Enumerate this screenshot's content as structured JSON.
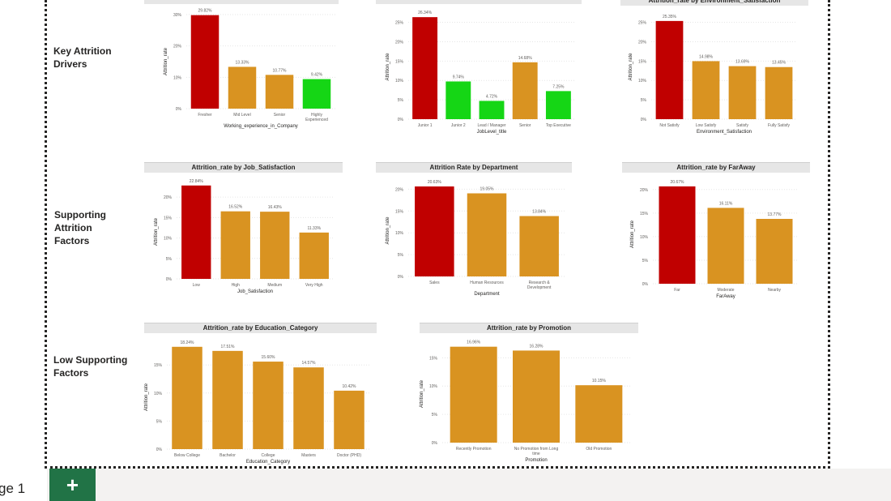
{
  "section_labels": [
    {
      "text": "Key Attrition\nDrivers",
      "color": "#c8102e"
    },
    {
      "text": "Supporting\nAttrition\nFactors",
      "color": "#e8502a"
    },
    {
      "text": "Low Supporting\nFactors",
      "color": "#1a8a1a"
    }
  ],
  "colors": {
    "red": "#c00000",
    "orange": "#d99321",
    "green": "#15d615"
  },
  "footer": {
    "page_label": "ge 1",
    "add_page_icon": "plus-icon"
  },
  "chart_data": [
    {
      "type": "bar",
      "title": "",
      "xlabel": "Working_experience_in_Company",
      "ylabel": "Attrition_rate",
      "categories": [
        "Fresher",
        "Mid Level",
        "Senior",
        "Highly\nExperienced"
      ],
      "values": [
        29.82,
        13.33,
        10.77,
        9.42
      ],
      "value_labels": [
        "29.82%",
        "13.33%",
        "10.77%",
        "9.42%"
      ],
      "bar_colors": [
        "red",
        "orange",
        "orange",
        "green"
      ],
      "y_ticks": [
        "0%",
        "10%",
        "20%",
        "30%"
      ],
      "ylim": [
        0,
        30
      ]
    },
    {
      "type": "bar",
      "title": "",
      "xlabel": "JobLevel_title",
      "ylabel": "Attrition_rate",
      "categories": [
        "Junior 1",
        "Junior 2",
        "Lead / Manager",
        "Senior",
        "Top Executive"
      ],
      "values": [
        26.34,
        9.74,
        4.72,
        14.68,
        7.25
      ],
      "value_labels": [
        "26.34%",
        "9.74%",
        "4.72%",
        "14.68%",
        "7.25%"
      ],
      "bar_colors": [
        "red",
        "green",
        "green",
        "orange",
        "green"
      ],
      "y_ticks": [
        "0%",
        "5%",
        "10%",
        "15%",
        "20%",
        "25%"
      ],
      "ylim": [
        0,
        27
      ]
    },
    {
      "type": "bar",
      "title": "Attrition_rate by Environment_Satisfaction",
      "xlabel": "Environment_Satisfaction",
      "ylabel": "Attrition_rate",
      "categories": [
        "Not Satisfy",
        "Low Satisfy",
        "Satisfy",
        "Fully Satisfy"
      ],
      "values": [
        25.35,
        14.98,
        13.69,
        13.45
      ],
      "value_labels": [
        "25.35%",
        "14.98%",
        "13.69%",
        "13.45%"
      ],
      "bar_colors": [
        "red",
        "orange",
        "orange",
        "orange"
      ],
      "y_ticks": [
        "0%",
        "5%",
        "10%",
        "15%",
        "20%",
        "25%"
      ],
      "ylim": [
        0,
        27
      ]
    },
    {
      "type": "bar",
      "title": "Attrition_rate by Job_Satisfaction",
      "xlabel": "Job_Satisfaction",
      "ylabel": "Attrition_rate",
      "categories": [
        "Low",
        "High",
        "Medium",
        "Very High"
      ],
      "values": [
        22.84,
        16.52,
        16.43,
        11.33
      ],
      "value_labels": [
        "22.84%",
        "16.52%",
        "16.43%",
        "11.33%"
      ],
      "bar_colors": [
        "red",
        "orange",
        "orange",
        "orange"
      ],
      "y_ticks": [
        "0%",
        "5%",
        "10%",
        "15%",
        "20%"
      ],
      "ylim": [
        0,
        23
      ]
    },
    {
      "type": "bar",
      "title": "Attrition Rate by Department",
      "xlabel": "Department",
      "ylabel": "Attrition_rate",
      "categories": [
        "Sales",
        "Human Resources",
        "Research &\nDevelopment"
      ],
      "values": [
        20.63,
        19.05,
        13.84
      ],
      "value_labels": [
        "20.63%",
        "19.05%",
        "13.84%"
      ],
      "bar_colors": [
        "red",
        "orange",
        "orange"
      ],
      "y_ticks": [
        "0%",
        "5%",
        "10%",
        "15%",
        "20%"
      ],
      "ylim": [
        0,
        21
      ]
    },
    {
      "type": "bar",
      "title": "Attrition_rate by FarAway",
      "xlabel": "FarAway",
      "ylabel": "Attrition_rate",
      "categories": [
        "Far",
        "Moderate",
        "Nearby"
      ],
      "values": [
        20.67,
        16.11,
        13.77
      ],
      "value_labels": [
        "20.67%",
        "16.11%",
        "13.77%"
      ],
      "bar_colors": [
        "red",
        "orange",
        "orange"
      ],
      "y_ticks": [
        "0%",
        "5%",
        "10%",
        "15%",
        "20%"
      ],
      "ylim": [
        0,
        21
      ]
    },
    {
      "type": "bar",
      "title": "Attrition_rate by Education_Category",
      "xlabel": "Education_Category",
      "ylabel": "Attrition_rate",
      "categories": [
        "Below College",
        "Bachelor",
        "College",
        "Masters",
        "Doctor (PHD)"
      ],
      "values": [
        18.24,
        17.51,
        15.6,
        14.57,
        10.42
      ],
      "value_labels": [
        "18.24%",
        "17.51%",
        "15.60%",
        "14.57%",
        "10.42%"
      ],
      "bar_colors": [
        "orange",
        "orange",
        "orange",
        "orange",
        "orange"
      ],
      "y_ticks": [
        "0%",
        "5%",
        "10%",
        "15%"
      ],
      "ylim": [
        0,
        18.5
      ]
    },
    {
      "type": "bar",
      "title": "Attrition_rate by Promotion",
      "xlabel": "Promotion",
      "ylabel": "Attrition_rate",
      "categories": [
        "Recently Promotion",
        "No Promotion from Long\ntime",
        "Old Promotion"
      ],
      "values": [
        16.96,
        16.28,
        10.15
      ],
      "value_labels": [
        "16.96%",
        "16.28%",
        "10.15%"
      ],
      "bar_colors": [
        "orange",
        "orange",
        "orange"
      ],
      "y_ticks": [
        "0%",
        "5%",
        "10%",
        "15%"
      ],
      "ylim": [
        0,
        17.2
      ]
    }
  ]
}
